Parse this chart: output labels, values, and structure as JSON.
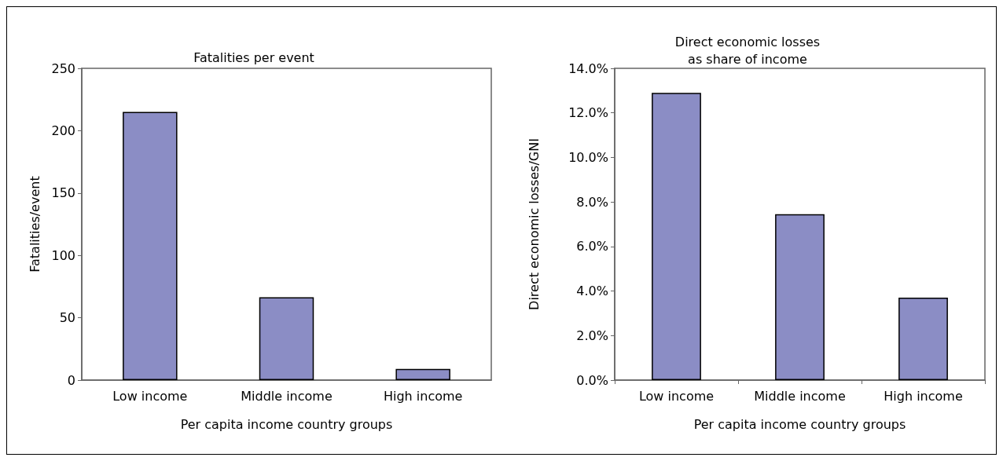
{
  "chart_data": [
    {
      "type": "bar",
      "title": "Fatalities per event",
      "xlabel": "Per capita income country groups",
      "ylabel": "Fatalities/event",
      "categories": [
        "Low income",
        "Middle income",
        "High income"
      ],
      "values": [
        215,
        66.5,
        9
      ],
      "color": "#8b8dc5",
      "ylim": [
        0,
        250
      ],
      "yticks": [
        0,
        50,
        100,
        150,
        200,
        250
      ],
      "grid": false
    },
    {
      "type": "bar",
      "title": "Direct economic losses\nas share of income",
      "xlabel": "Per capita income country groups",
      "ylabel": "Direct economic losses/GNI",
      "categories": [
        "Low income",
        "Middle income",
        "High income"
      ],
      "values": [
        12.9,
        7.45,
        3.7
      ],
      "color": "#8b8dc5",
      "ylim": [
        0,
        14
      ],
      "yticks": [
        {
          "value": 0,
          "label": "0.0%"
        },
        {
          "value": 2,
          "label": "2.0%"
        },
        {
          "value": 4,
          "label": "4.0%"
        },
        {
          "value": 6,
          "label": "6.0%"
        },
        {
          "value": 8,
          "label": "8.0%"
        },
        {
          "value": 10,
          "label": "10.0%"
        },
        {
          "value": 12,
          "label": "12.0%"
        },
        {
          "value": 14,
          "label": "14.0%"
        }
      ],
      "grid": false
    }
  ]
}
